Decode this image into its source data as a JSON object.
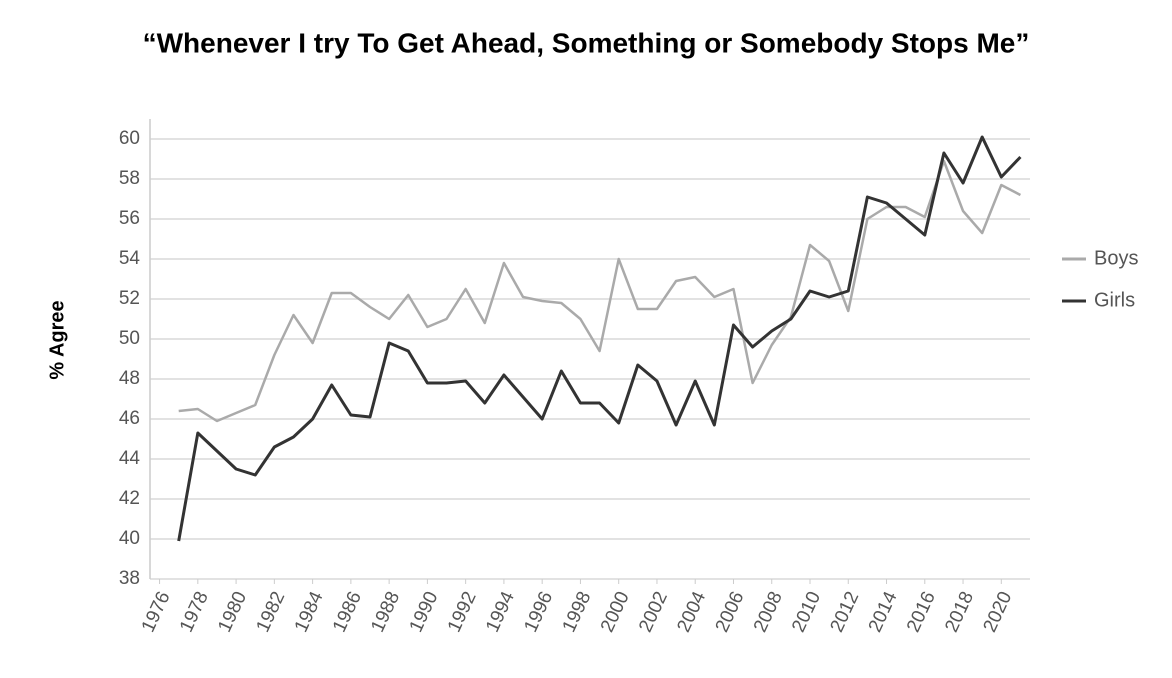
{
  "chart_data": {
    "type": "line",
    "title": "“Whenever I try To Get Ahead, Something or Somebody Stops Me”",
    "y_label": "% Agree",
    "x": [
      1977,
      1978,
      1979,
      1980,
      1981,
      1982,
      1983,
      1984,
      1985,
      1986,
      1987,
      1988,
      1989,
      1990,
      1991,
      1992,
      1993,
      1994,
      1995,
      1996,
      1997,
      1998,
      1999,
      2000,
      2001,
      2002,
      2003,
      2004,
      2005,
      2006,
      2007,
      2008,
      2009,
      2010,
      2011,
      2012,
      2013,
      2014,
      2015,
      2016,
      2017,
      2018,
      2019,
      2020,
      2021
    ],
    "series": [
      {
        "name": "Boys",
        "color": "#aaaaaa",
        "values": [
          46.4,
          46.5,
          45.9,
          46.3,
          46.7,
          49.2,
          51.2,
          49.8,
          52.3,
          52.3,
          51.6,
          51.0,
          52.2,
          50.6,
          51.0,
          52.5,
          50.8,
          53.8,
          52.1,
          51.9,
          51.8,
          51.0,
          49.4,
          54.0,
          51.5,
          51.5,
          52.9,
          53.1,
          52.1,
          52.5,
          47.8,
          49.7,
          51.1,
          54.7,
          53.9,
          51.4,
          56.0,
          56.6,
          56.6,
          56.1,
          58.9,
          56.4,
          55.3,
          57.7,
          57.2
        ]
      },
      {
        "name": "Girls",
        "color": "#333333",
        "values": [
          39.9,
          45.3,
          44.4,
          43.5,
          43.2,
          44.6,
          45.1,
          46.0,
          47.7,
          46.2,
          46.1,
          49.8,
          49.4,
          47.8,
          47.8,
          47.9,
          46.8,
          48.2,
          47.1,
          46.0,
          48.4,
          46.8,
          46.8,
          45.8,
          48.7,
          47.9,
          45.7,
          47.9,
          45.7,
          50.7,
          49.6,
          50.4,
          51.0,
          52.4,
          52.1,
          52.4,
          57.1,
          56.8,
          56.0,
          55.2,
          59.3,
          57.8,
          60.1,
          58.1,
          59.1
        ]
      }
    ],
    "xlim": [
      1975.5,
      2021.5
    ],
    "xticks": [
      1976,
      1978,
      1980,
      1982,
      1984,
      1986,
      1988,
      1990,
      1992,
      1994,
      1996,
      1998,
      2000,
      2002,
      2004,
      2006,
      2008,
      2010,
      2012,
      2014,
      2016,
      2018,
      2020
    ],
    "ylim": [
      38,
      60
    ],
    "yticks": [
      38,
      40,
      42,
      44,
      46,
      48,
      50,
      52,
      54,
      56,
      58,
      60
    ],
    "grid": true,
    "legend": "right"
  }
}
